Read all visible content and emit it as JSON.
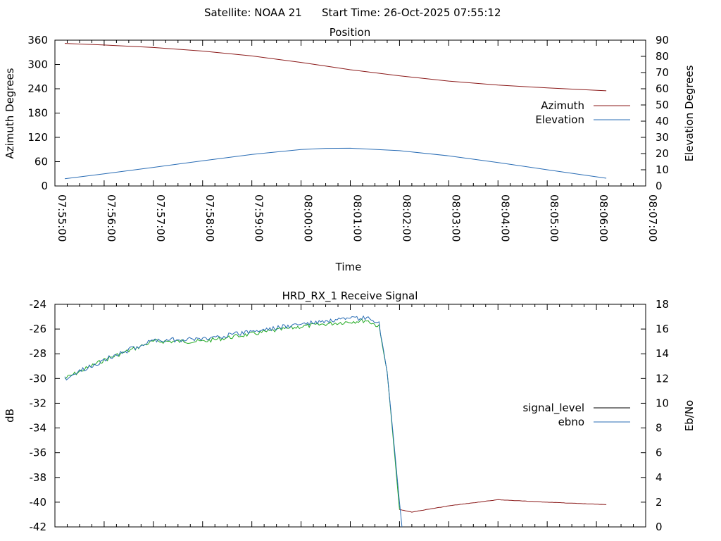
{
  "header": {
    "satellite_text": "Satellite: NOAA 21",
    "start_time_text": "Start Time: 26-Oct-2025 07:55:12"
  },
  "chart_data": [
    {
      "type": "line",
      "title": "Position",
      "xlabel": "Time",
      "ylabel": "Azimuth Degrees",
      "y2label": "Elevation Degrees",
      "xlim": [
        "07:55:00",
        "08:07:00"
      ],
      "ylim": [
        0,
        360
      ],
      "y2lim": [
        0,
        90
      ],
      "x_ticks": [
        "07:55:00",
        "07:56:00",
        "07:57:00",
        "07:58:00",
        "07:59:00",
        "08:00:00",
        "08:01:00",
        "08:02:00",
        "08:03:00",
        "08:04:00",
        "08:05:00",
        "08:06:00",
        "08:07:00"
      ],
      "y_ticks": [
        "0",
        "60",
        "120",
        "180",
        "240",
        "300",
        "360"
      ],
      "y2_ticks": [
        "0",
        "10",
        "20",
        "30",
        "40",
        "50",
        "60",
        "70",
        "80",
        "90"
      ],
      "legend_position": "right",
      "series": [
        {
          "name": "Azimuth",
          "axis": "y",
          "color": "#8b1a1a",
          "x": [
            "07:55:12",
            "07:56:00",
            "07:57:00",
            "07:58:00",
            "07:59:00",
            "08:00:00",
            "08:00:30",
            "08:01:00",
            "08:02:00",
            "08:03:00",
            "08:04:00",
            "08:05:00",
            "08:06:12"
          ],
          "y": [
            352,
            348,
            342,
            333,
            321,
            305,
            296,
            287,
            272,
            259,
            249,
            242,
            235
          ]
        },
        {
          "name": "Elevation",
          "axis": "y2",
          "color": "#2a6db5",
          "x": [
            "07:55:12",
            "07:56:00",
            "07:57:00",
            "07:58:00",
            "07:59:00",
            "08:00:00",
            "08:00:30",
            "08:01:00",
            "08:02:00",
            "08:03:00",
            "08:04:00",
            "08:05:00",
            "08:06:12"
          ],
          "y": [
            4.5,
            7.5,
            11.5,
            15.5,
            19.5,
            22.5,
            23.2,
            23.3,
            21.8,
            18.6,
            14.5,
            10.0,
            4.8
          ]
        }
      ]
    },
    {
      "type": "line",
      "title": "HRD_RX_1 Receive Signal",
      "xlabel": "",
      "ylabel": "dB",
      "y2label": "Eb/No",
      "ylim": [
        -42,
        -24
      ],
      "y2lim": [
        0,
        18
      ],
      "y_ticks": [
        "-24",
        "-26",
        "-28",
        "-30",
        "-32",
        "-34",
        "-36",
        "-38",
        "-40",
        "-42"
      ],
      "y2_ticks": [
        "18",
        "16",
        "14",
        "12",
        "10",
        "8",
        "6",
        "4",
        "2",
        "0"
      ],
      "legend_position": "right",
      "series": [
        {
          "name": "signal_level",
          "axis": "y",
          "color": "#000000",
          "segments": [
            {
              "color": "#22aa22",
              "x": [
                "07:55:12",
                "07:56:00",
                "07:57:00",
                "07:58:00",
                "07:59:00",
                "08:00:00",
                "08:01:00",
                "08:01:20",
                "08:01:35",
                "08:01:45",
                "08:02:00"
              ],
              "y": [
                -30.0,
                -28.5,
                -27.0,
                -27.0,
                -26.4,
                -25.8,
                -25.4,
                -25.3,
                -25.8,
                -29.5,
                -40.6
              ]
            },
            {
              "color": "#8b1a1a",
              "x": [
                "08:02:00",
                "08:02:15",
                "08:03:00",
                "08:04:00",
                "08:05:00",
                "08:06:12"
              ],
              "y": [
                -40.6,
                -40.8,
                -40.3,
                -39.8,
                -40.0,
                -40.2
              ]
            }
          ]
        },
        {
          "name": "ebno",
          "axis": "y2",
          "color": "#2a6db5",
          "x": [
            "07:55:12",
            "07:56:00",
            "07:57:00",
            "07:58:00",
            "07:59:00",
            "08:00:00",
            "08:01:00",
            "08:01:20",
            "08:01:35",
            "08:01:45",
            "08:02:00",
            "08:02:03"
          ],
          "y": [
            12.0,
            13.5,
            15.1,
            15.2,
            15.8,
            16.4,
            16.8,
            16.9,
            16.4,
            12.5,
            2.0,
            0.0
          ]
        }
      ]
    }
  ]
}
